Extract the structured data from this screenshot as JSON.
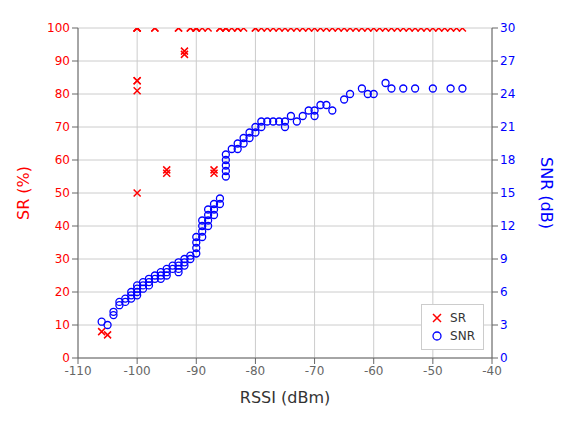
{
  "chart_data": {
    "type": "scatter",
    "xlabel": "RSSI (dBm)",
    "ylabel": "SR (%)",
    "y2label": "SNR (dB)",
    "xlim": [
      -110,
      -40
    ],
    "xticks": [
      -110,
      -100,
      -90,
      -80,
      -70,
      -60,
      -50,
      -40
    ],
    "ylim": [
      0,
      100
    ],
    "yticks": [
      0,
      10,
      20,
      30,
      40,
      50,
      60,
      70,
      80,
      90,
      100
    ],
    "y2lim": [
      0,
      30
    ],
    "y2ticks": [
      0,
      3,
      6,
      9,
      12,
      15,
      18,
      21,
      24,
      27,
      30
    ],
    "grid": true,
    "legend": "lower right",
    "series": [
      {
        "name": "SR",
        "color": "#ff0000",
        "marker": "x",
        "x": [
          -106,
          -105,
          -100,
          -100,
          -100,
          -100,
          -100,
          -100,
          -100,
          -100,
          -97,
          -97,
          -95,
          -95,
          -93,
          -93,
          -92,
          -92,
          -91,
          -91,
          -90,
          -90,
          -90,
          -90,
          -89,
          -88,
          -87,
          -87,
          -86,
          -86,
          -85,
          -85,
          -85,
          -84,
          -83,
          -83,
          -82,
          -80,
          -80,
          -79,
          -78,
          -77,
          -76,
          -75,
          -74,
          -73,
          -72,
          -71,
          -70,
          -69,
          -68,
          -67,
          -66,
          -65,
          -64,
          -63,
          -62,
          -61,
          -60,
          -59,
          -58,
          -57,
          -56,
          -55,
          -54,
          -53,
          -52,
          -51,
          -50,
          -49,
          -48,
          -47,
          -46,
          -45
        ],
        "values": [
          8,
          7,
          100,
          100,
          100,
          100,
          84,
          84,
          81,
          50,
          100,
          100,
          57,
          56,
          100,
          100,
          93,
          92,
          100,
          100,
          100,
          100,
          100,
          100,
          100,
          100,
          57,
          56,
          100,
          100,
          100,
          100,
          100,
          100,
          100,
          100,
          100,
          100,
          100,
          100,
          100,
          100,
          100,
          100,
          100,
          100,
          100,
          100,
          100,
          100,
          100,
          100,
          100,
          100,
          100,
          100,
          100,
          100,
          100,
          100,
          100,
          100,
          100,
          100,
          100,
          100,
          100,
          100,
          100,
          100,
          100,
          100,
          100,
          100
        ]
      },
      {
        "name": "SNR",
        "color": "#0000ff",
        "marker": "o",
        "axis": "y2",
        "x": [
          -106,
          -105,
          -104,
          -104,
          -103,
          -103,
          -102,
          -102,
          -101,
          -101,
          -101,
          -100,
          -100,
          -100,
          -100,
          -99,
          -99,
          -99,
          -98,
          -98,
          -98,
          -97,
          -97,
          -96,
          -96,
          -96,
          -95,
          -95,
          -95,
          -94,
          -94,
          -93,
          -93,
          -93,
          -93,
          -92,
          -92,
          -92,
          -91,
          -91,
          -90,
          -90,
          -90,
          -90,
          -89,
          -89,
          -89,
          -89,
          -88,
          -88,
          -88,
          -88,
          -87,
          -87,
          -87,
          -86,
          -86,
          -85,
          -85,
          -85,
          -85,
          -85,
          -84,
          -83,
          -83,
          -82,
          -82,
          -81,
          -81,
          -80,
          -80,
          -79,
          -79,
          -78,
          -77,
          -76,
          -75,
          -75,
          -74,
          -73,
          -72,
          -71,
          -70,
          -70,
          -69,
          -68,
          -67,
          -65,
          -64,
          -62,
          -61,
          -60,
          -58,
          -57,
          -55,
          -53,
          -50,
          -47,
          -45
        ],
        "values": [
          3.3,
          3.0,
          4.2,
          3.9,
          5.1,
          4.8,
          5.4,
          5.1,
          6.0,
          5.7,
          5.4,
          6.6,
          6.3,
          6.0,
          5.7,
          6.9,
          6.6,
          6.3,
          7.2,
          6.9,
          6.6,
          7.5,
          7.2,
          7.8,
          7.5,
          7.2,
          8.1,
          7.8,
          7.5,
          8.4,
          8.1,
          8.7,
          8.4,
          8.1,
          7.8,
          9.0,
          8.7,
          8.4,
          9.3,
          9.0,
          11.0,
          10.5,
          10.0,
          9.5,
          12.5,
          12.0,
          11.5,
          11.0,
          13.5,
          13.0,
          12.5,
          12.0,
          14.0,
          13.5,
          13.0,
          14.5,
          14.0,
          18.5,
          18.0,
          17.5,
          17.0,
          16.5,
          19.0,
          19.5,
          19.0,
          20.0,
          19.5,
          20.5,
          20.0,
          21.0,
          20.5,
          21.5,
          21.0,
          21.5,
          21.5,
          21.5,
          21.5,
          21.0,
          22.0,
          21.5,
          22.0,
          22.5,
          22.5,
          22.0,
          23.0,
          23.0,
          22.5,
          23.5,
          24.0,
          24.5,
          24.0,
          24.0,
          25.0,
          24.5,
          24.5,
          24.5,
          24.5,
          24.5,
          24.5
        ]
      }
    ]
  }
}
